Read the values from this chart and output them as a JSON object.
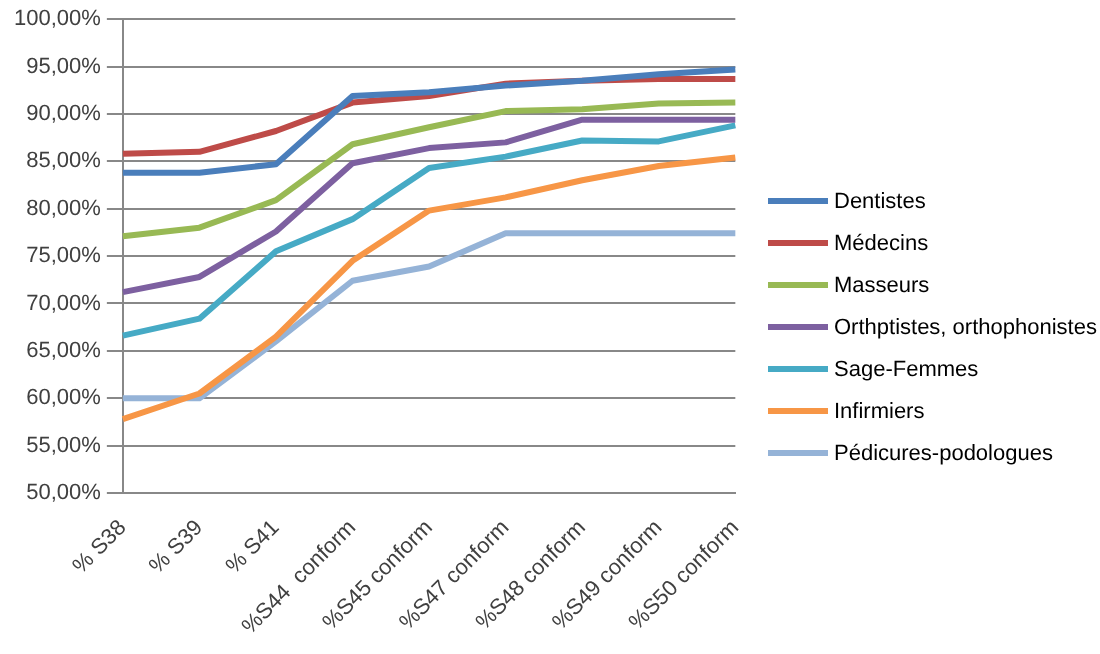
{
  "chart_data": {
    "type": "line",
    "categories": [
      "% S38",
      "% S39",
      "% S41",
      "%S44  conform",
      "%S45 conform",
      "%S47 conform",
      "%S48 conform",
      "%S49 conform",
      "%S50 conform"
    ],
    "series": [
      {
        "name": "Dentistes",
        "color": "#4a7ebb",
        "values": [
          83.8,
          83.8,
          84.7,
          91.9,
          92.3,
          93.0,
          93.5,
          94.2,
          94.7
        ]
      },
      {
        "name": "Médecins",
        "color": "#be4b48",
        "values": [
          85.8,
          86.0,
          88.2,
          91.2,
          91.9,
          93.2,
          93.5,
          93.7,
          93.7
        ]
      },
      {
        "name": "Masseurs",
        "color": "#98b954",
        "values": [
          77.1,
          78.0,
          80.9,
          86.8,
          88.6,
          90.3,
          90.5,
          91.1,
          91.2
        ]
      },
      {
        "name": "Orthptistes, orthophonistes",
        "color": "#7d60a0",
        "values": [
          71.2,
          72.8,
          77.6,
          84.8,
          86.4,
          87.0,
          89.4,
          89.4,
          89.4
        ]
      },
      {
        "name": "Sage-Femmes",
        "color": "#46aac5",
        "values": [
          66.6,
          68.4,
          75.5,
          78.9,
          84.3,
          85.5,
          87.2,
          87.1,
          88.8
        ]
      },
      {
        "name": "Infirmiers",
        "color": "#f79646",
        "values": [
          57.8,
          60.5,
          66.5,
          74.5,
          79.8,
          81.2,
          83.0,
          84.5,
          85.4
        ]
      },
      {
        "name": "Pédicures-podologues",
        "color": "#95b3d7",
        "values": [
          60.0,
          60.0,
          66.0,
          72.4,
          73.9,
          77.4,
          77.4,
          77.4,
          77.4
        ]
      }
    ],
    "ylim": [
      50,
      100
    ],
    "yticks": [
      {
        "value": 50,
        "label": "50,00%"
      },
      {
        "value": 55,
        "label": "55,00%"
      },
      {
        "value": 60,
        "label": "60,00%"
      },
      {
        "value": 65,
        "label": "65,00%"
      },
      {
        "value": 70,
        "label": "70,00%"
      },
      {
        "value": 75,
        "label": "75,00%"
      },
      {
        "value": 80,
        "label": "80,00%"
      },
      {
        "value": 85,
        "label": "85,00%"
      },
      {
        "value": 90,
        "label": "90,00%"
      },
      {
        "value": 95,
        "label": "95,00%"
      },
      {
        "value": 100,
        "label": "100,00%"
      }
    ],
    "grid": "y",
    "legend": "right",
    "marker": "none",
    "line_style": "solid"
  }
}
